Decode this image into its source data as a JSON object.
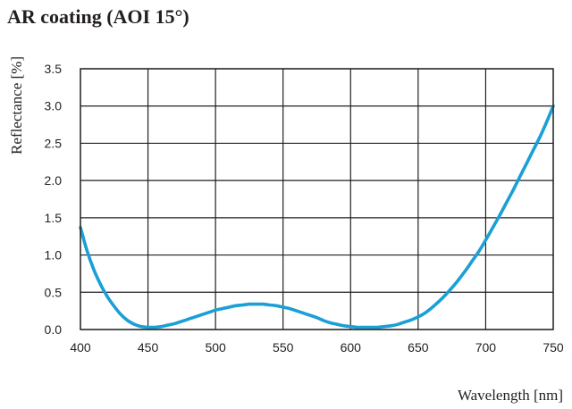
{
  "chart_data": {
    "type": "line",
    "title": "AR coating (AOI 15°)",
    "xlabel": "Wavelength [nm]",
    "ylabel": "Reflectance [%]",
    "xlim": [
      400,
      750
    ],
    "ylim": [
      0,
      3.5
    ],
    "x_ticks": [
      "400",
      "450",
      "500",
      "550",
      "600",
      "650",
      "700",
      "750"
    ],
    "y_ticks": [
      "0.0",
      "0.5",
      "1.0",
      "1.5",
      "2.0",
      "2.5",
      "3.0",
      "3.5"
    ],
    "grid": true,
    "legend": "none",
    "series": [
      {
        "color": "#1a9fd6",
        "x": [
          400,
          405,
          410,
          415,
          420,
          425,
          430,
          435,
          440,
          445,
          450,
          455,
          460,
          465,
          470,
          475,
          480,
          485,
          490,
          495,
          500,
          505,
          510,
          515,
          520,
          525,
          530,
          535,
          540,
          545,
          550,
          555,
          560,
          565,
          570,
          575,
          580,
          585,
          590,
          595,
          600,
          605,
          610,
          615,
          620,
          625,
          630,
          635,
          640,
          645,
          650,
          655,
          660,
          665,
          670,
          675,
          680,
          685,
          690,
          695,
          700,
          705,
          710,
          715,
          720,
          725,
          730,
          735,
          740,
          745,
          750
        ],
        "y": [
          1.37,
          1.05,
          0.8,
          0.6,
          0.44,
          0.31,
          0.2,
          0.12,
          0.07,
          0.04,
          0.03,
          0.03,
          0.04,
          0.06,
          0.08,
          0.11,
          0.14,
          0.17,
          0.2,
          0.23,
          0.26,
          0.28,
          0.3,
          0.32,
          0.33,
          0.34,
          0.34,
          0.34,
          0.33,
          0.32,
          0.3,
          0.28,
          0.25,
          0.22,
          0.19,
          0.16,
          0.12,
          0.09,
          0.07,
          0.05,
          0.04,
          0.03,
          0.03,
          0.03,
          0.03,
          0.04,
          0.05,
          0.07,
          0.1,
          0.13,
          0.17,
          0.22,
          0.29,
          0.37,
          0.46,
          0.56,
          0.67,
          0.79,
          0.92,
          1.05,
          1.2,
          1.36,
          1.52,
          1.69,
          1.86,
          2.04,
          2.22,
          2.4,
          2.58,
          2.78,
          3.0
        ]
      }
    ]
  }
}
